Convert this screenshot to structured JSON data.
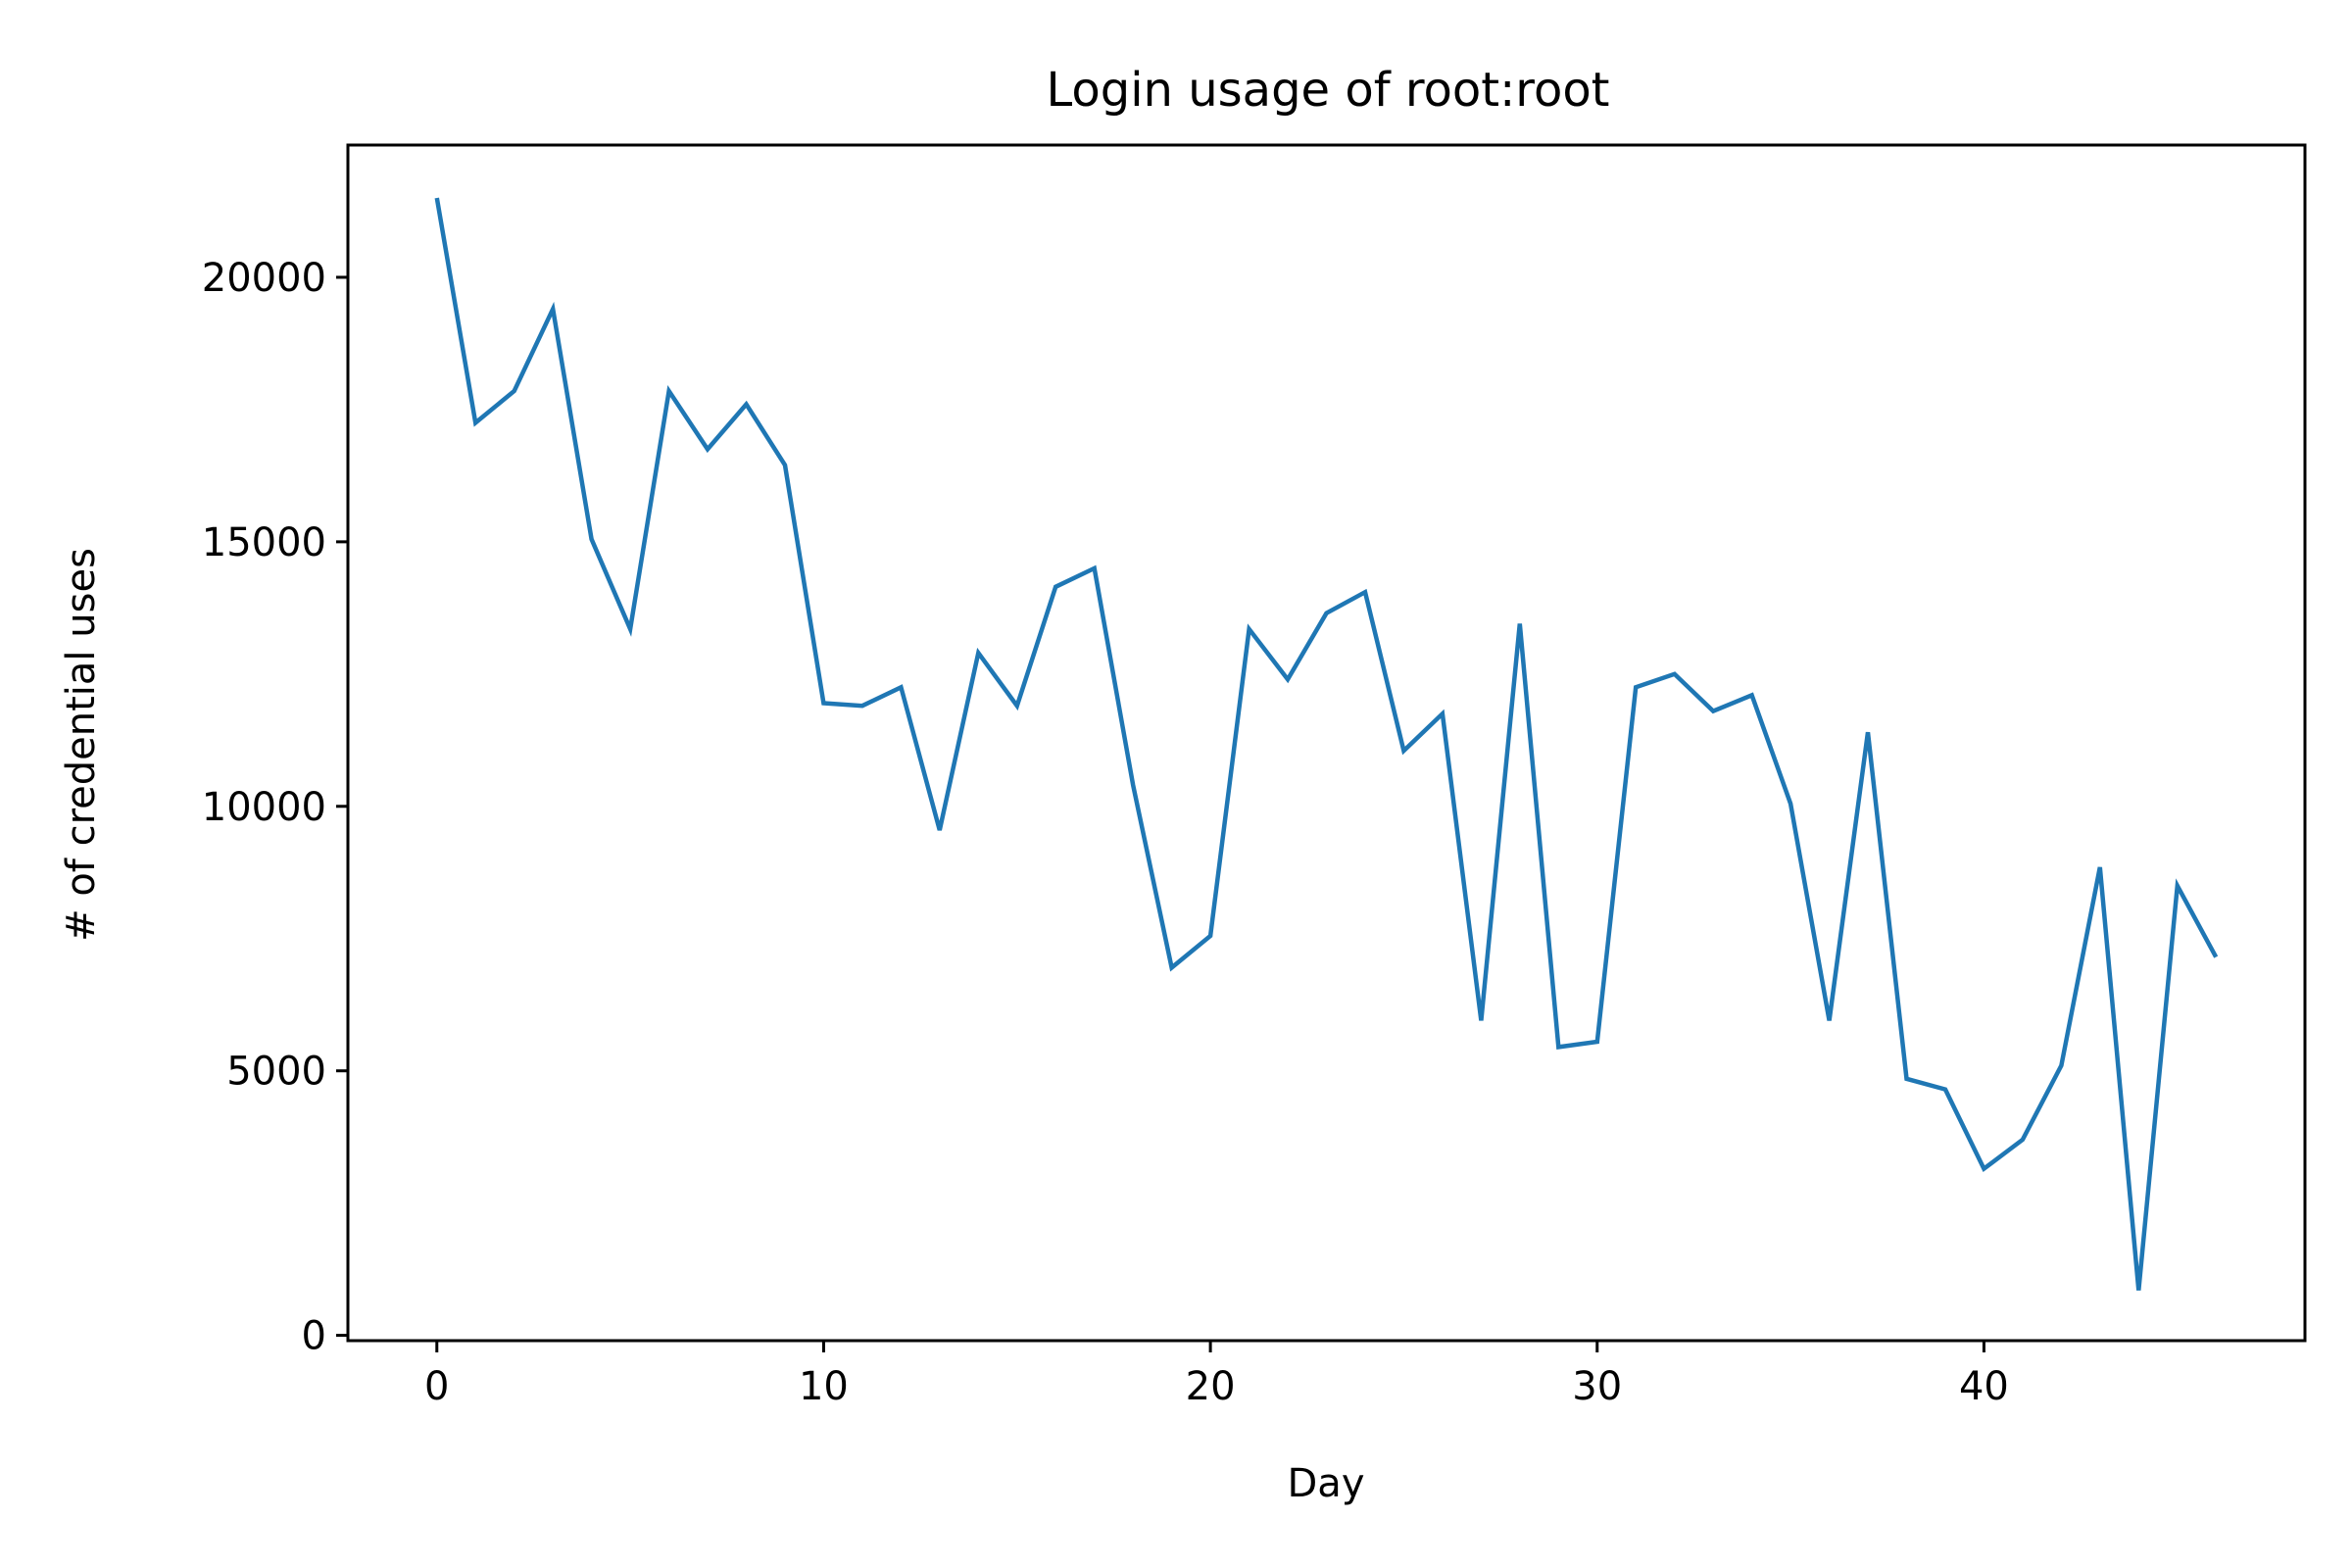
{
  "chart_data": {
    "type": "line",
    "title": "Login usage of root:root",
    "xlabel": "Day",
    "ylabel": "# of credential uses",
    "xlim": [
      -2.3,
      48.3
    ],
    "ylim": [
      -100,
      22500
    ],
    "xticks": [
      0,
      10,
      20,
      30,
      40
    ],
    "yticks": [
      0,
      5000,
      10000,
      15000,
      20000
    ],
    "xtick_labels": [
      "0",
      "10",
      "20",
      "30",
      "40"
    ],
    "ytick_labels": [
      "0",
      "5000",
      "10000",
      "15000",
      "20000"
    ],
    "grid": false,
    "series": [
      {
        "color": "#1f77b4",
        "x": [
          0,
          1,
          2,
          3,
          4,
          5,
          6,
          7,
          8,
          9,
          10,
          11,
          12,
          13,
          14,
          15,
          16,
          17,
          18,
          19,
          20,
          21,
          22,
          23,
          24,
          25,
          26,
          27,
          28,
          29,
          30,
          31,
          32,
          33,
          34,
          35,
          36,
          37,
          38,
          39,
          40,
          41,
          42,
          43,
          44,
          45,
          46
        ],
        "values": [
          21500,
          17250,
          17850,
          19400,
          15050,
          13350,
          17850,
          16750,
          17600,
          16450,
          11950,
          11900,
          12250,
          9550,
          12900,
          11900,
          14150,
          14500,
          10400,
          6950,
          7550,
          13350,
          12400,
          13650,
          14050,
          11050,
          11750,
          5950,
          13450,
          5450,
          5550,
          12250,
          12500,
          11800,
          12100,
          10050,
          5950,
          11400,
          4850,
          4650,
          3150,
          3700,
          5100,
          8850,
          850,
          8500,
          7150
        ]
      }
    ]
  }
}
